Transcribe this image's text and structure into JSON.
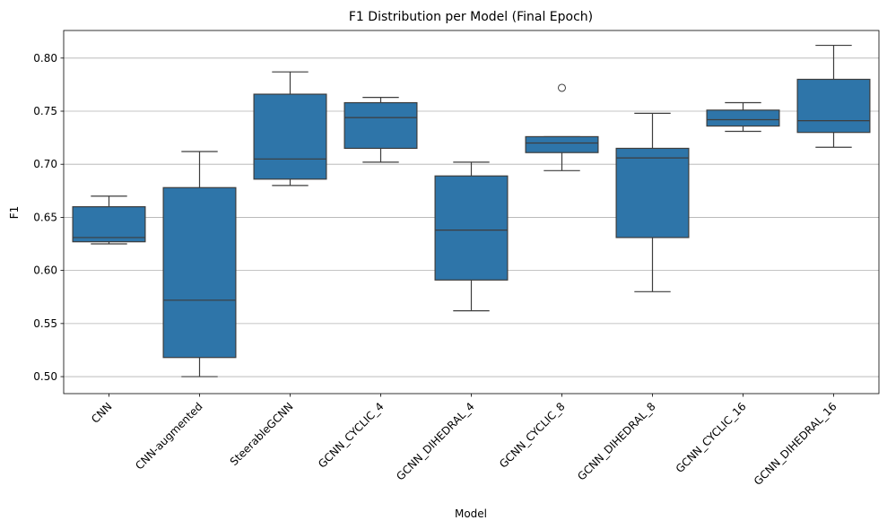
{
  "chart_data": {
    "type": "box",
    "title": "F1 Distribution per Model (Final Epoch)",
    "xlabel": "Model",
    "ylabel": "F1",
    "ylim": [
      0.484,
      0.826
    ],
    "yticks": [
      "0.50",
      "0.55",
      "0.60",
      "0.65",
      "0.70",
      "0.75",
      "0.80"
    ],
    "grid": "y",
    "box_color": "#2e75a9",
    "categories": [
      "CNN",
      "CNN-augmented",
      "SteerableGCNN",
      "GCNN_CYCLIC_4",
      "GCNN_DIHEDRAL_4",
      "GCNN_CYCLIC_8",
      "GCNN_DIHEDRAL_8",
      "GCNN_CYCLIC_16",
      "GCNN_DIHEDRAL_16"
    ],
    "boxes": [
      {
        "min": 0.625,
        "q1": 0.627,
        "median": 0.631,
        "q3": 0.66,
        "max": 0.67,
        "outliers": []
      },
      {
        "min": 0.5,
        "q1": 0.518,
        "median": 0.572,
        "q3": 0.678,
        "max": 0.712,
        "outliers": []
      },
      {
        "min": 0.68,
        "q1": 0.686,
        "median": 0.705,
        "q3": 0.766,
        "max": 0.787,
        "outliers": []
      },
      {
        "min": 0.702,
        "q1": 0.715,
        "median": 0.744,
        "q3": 0.758,
        "max": 0.763,
        "outliers": []
      },
      {
        "min": 0.562,
        "q1": 0.591,
        "median": 0.638,
        "q3": 0.689,
        "max": 0.702,
        "outliers": []
      },
      {
        "min": 0.694,
        "q1": 0.711,
        "median": 0.72,
        "q3": 0.726,
        "max": 0.726,
        "outliers": [
          0.772
        ]
      },
      {
        "min": 0.58,
        "q1": 0.631,
        "median": 0.706,
        "q3": 0.715,
        "max": 0.748,
        "outliers": []
      },
      {
        "min": 0.731,
        "q1": 0.736,
        "median": 0.742,
        "q3": 0.751,
        "max": 0.758,
        "outliers": []
      },
      {
        "min": 0.716,
        "q1": 0.73,
        "median": 0.741,
        "q3": 0.78,
        "max": 0.812,
        "outliers": []
      }
    ]
  }
}
